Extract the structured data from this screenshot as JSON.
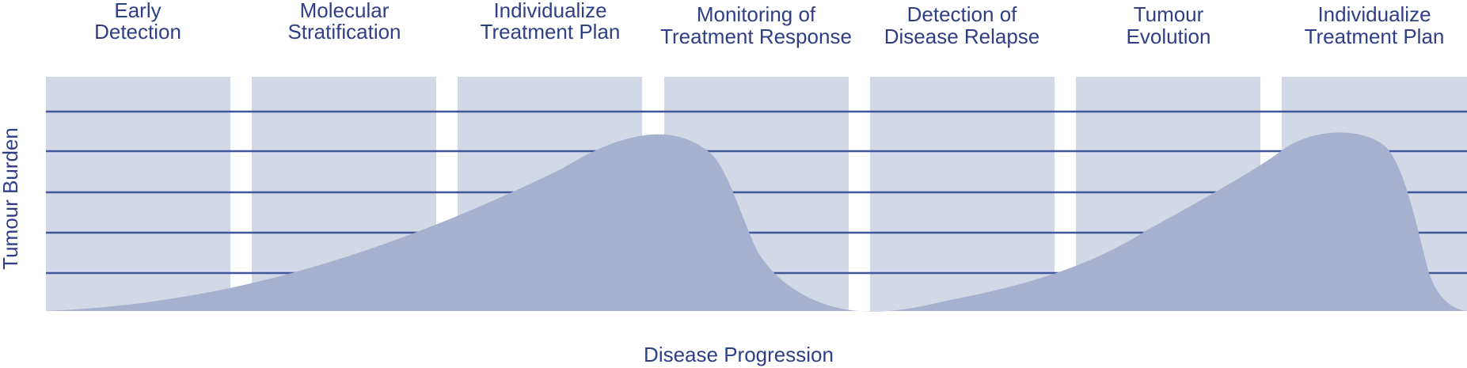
{
  "title": "",
  "stages": [
    {
      "line1": "Early",
      "line2": "Detection"
    },
    {
      "line1": "Molecular",
      "line2": "Stratification"
    },
    {
      "line1": "Individualize",
      "line2": "Treatment Plan"
    },
    {
      "line1": "Monitoring of",
      "line2": "Treatment Response"
    },
    {
      "line1": "Detection of",
      "line2": "Disease Relapse"
    },
    {
      "line1": "Tumour",
      "line2": "Evolution"
    },
    {
      "line1": "Individualize",
      "line2": "Treatment Plan"
    }
  ],
  "axes": {
    "x_label": "Disease Progression",
    "y_label": "Tumour Burden"
  },
  "colors": {
    "panel": "#d3d8e7",
    "gridline": "#40559a",
    "curve": "#a8b0d0",
    "text": "#2e3f86"
  }
}
